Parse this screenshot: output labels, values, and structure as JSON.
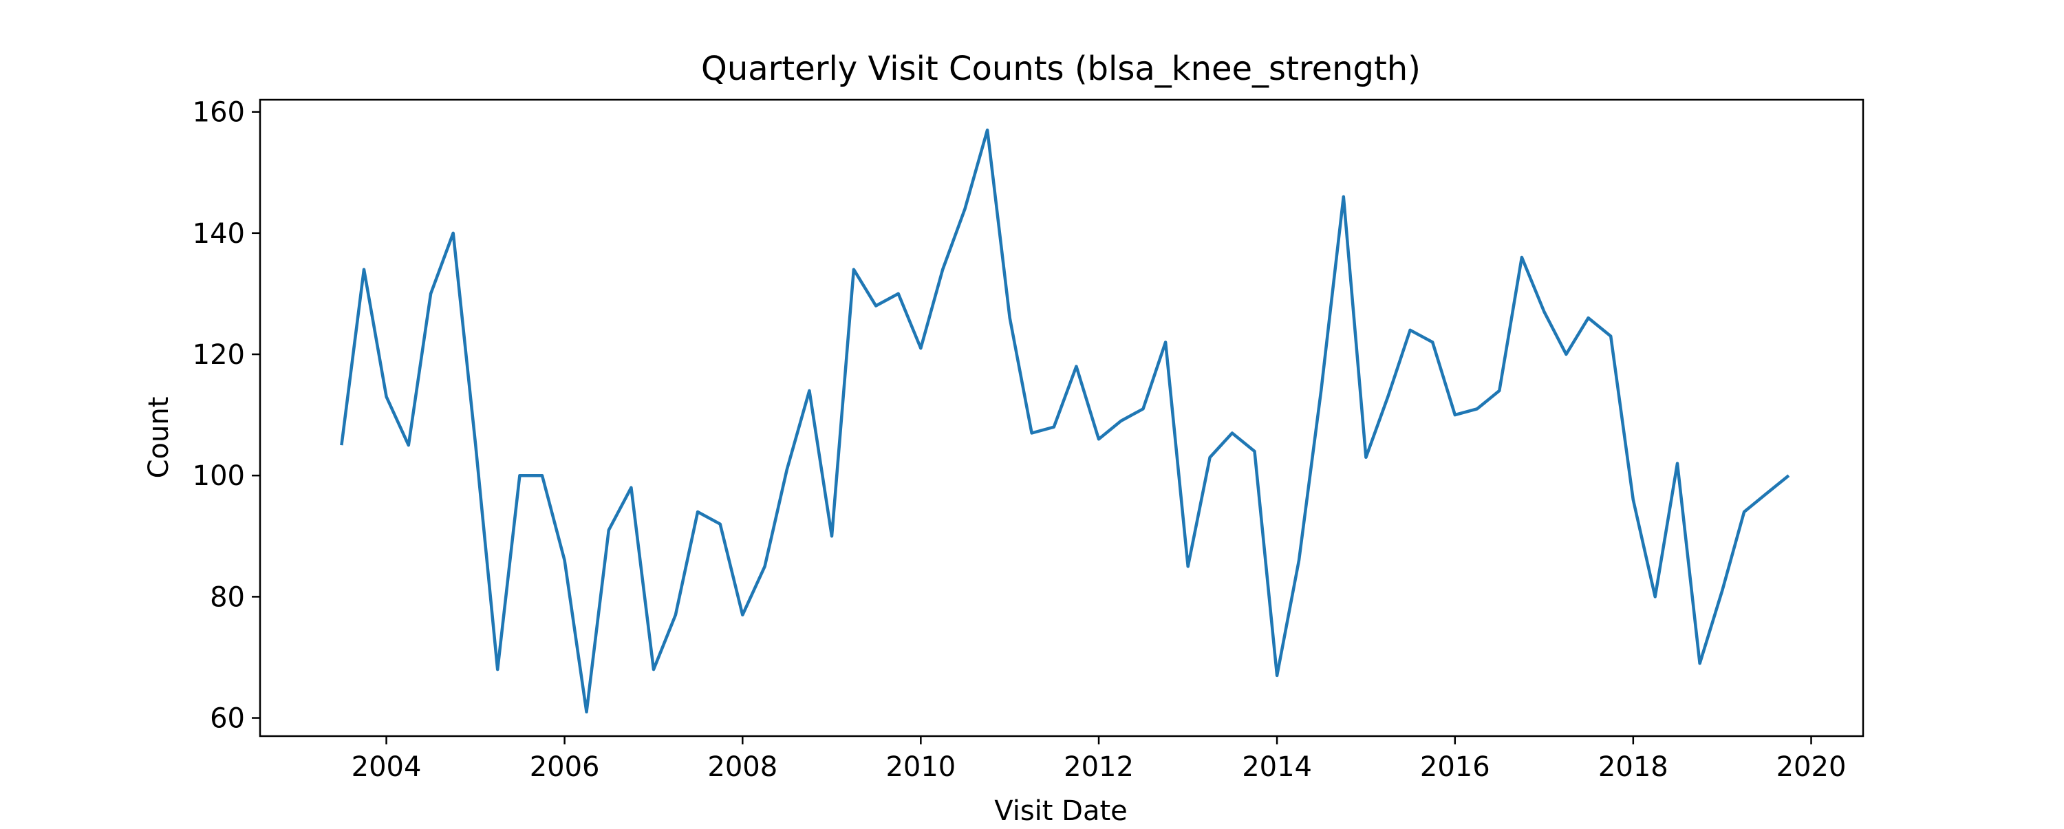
{
  "chart_data": {
    "type": "line",
    "title": "Quarterly Visit Counts (blsa_knee_strength)",
    "xlabel": "Visit Date",
    "ylabel": "Count",
    "grid": false,
    "line_color": "#1f77b4",
    "xlim": [
      "2002-08-01",
      "2020-08-01"
    ],
    "ylim": [
      57,
      162
    ],
    "xticks": [
      "2004",
      "2006",
      "2008",
      "2010",
      "2012",
      "2014",
      "2016",
      "2018",
      "2020"
    ],
    "yticks": [
      60,
      80,
      100,
      120,
      140,
      160
    ],
    "series": [
      {
        "x": [
          "2003-07-01",
          "2003-10-01",
          "2004-01-01",
          "2004-04-01",
          "2004-07-01",
          "2004-10-01",
          "2005-01-01",
          "2005-04-01",
          "2005-07-01",
          "2005-10-01",
          "2006-01-01",
          "2006-04-01",
          "2006-07-01",
          "2006-10-01",
          "2007-01-01",
          "2007-04-01",
          "2007-07-01",
          "2007-10-01",
          "2008-01-01",
          "2008-04-01",
          "2008-07-01",
          "2008-10-01",
          "2009-01-01",
          "2009-04-01",
          "2009-07-01",
          "2009-10-01",
          "2010-01-01",
          "2010-04-01",
          "2010-07-01",
          "2010-10-01",
          "2011-01-01",
          "2011-04-01",
          "2011-07-01",
          "2011-10-01",
          "2012-01-01",
          "2012-04-01",
          "2012-07-01",
          "2012-10-01",
          "2013-01-01",
          "2013-04-01",
          "2013-07-01",
          "2013-10-01",
          "2014-01-01",
          "2014-04-01",
          "2014-07-01",
          "2014-10-01",
          "2015-01-01",
          "2015-04-01",
          "2015-07-01",
          "2015-10-01",
          "2016-01-01",
          "2016-04-01",
          "2016-07-01",
          "2016-10-01",
          "2017-01-01",
          "2017-04-01",
          "2017-07-01",
          "2017-10-01",
          "2018-01-01",
          "2018-04-01",
          "2018-07-01",
          "2018-10-01",
          "2019-01-01",
          "2019-04-01",
          "2019-07-01",
          "2019-10-01"
        ],
        "values": [
          105,
          134,
          113,
          105,
          130,
          140,
          105,
          68,
          100,
          100,
          86,
          61,
          91,
          98,
          68,
          77,
          94,
          92,
          77,
          85,
          101,
          114,
          90,
          134,
          128,
          130,
          121,
          134,
          144,
          157,
          126,
          107,
          108,
          118,
          106,
          109,
          111,
          122,
          85,
          103,
          107,
          104,
          67,
          86,
          114,
          146,
          103,
          113,
          124,
          122,
          110,
          111,
          114,
          136,
          127,
          120,
          126,
          123,
          96,
          80,
          102,
          69,
          81,
          94,
          97,
          100
        ]
      }
    ]
  }
}
